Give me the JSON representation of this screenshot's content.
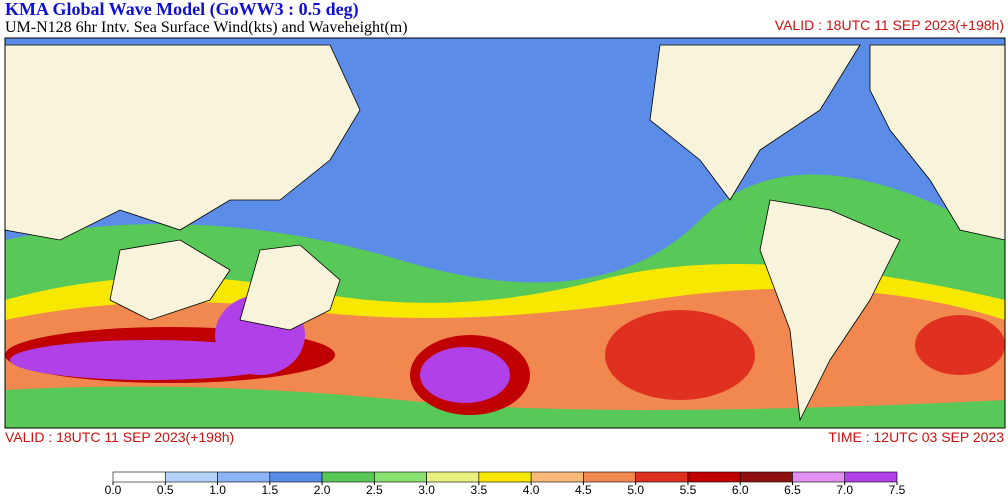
{
  "header": {
    "title": "KMA  Global Wave Model (GoWW3 : 0.5 deg)",
    "subtitle": "UM-N128  6hr Intv. Sea Surface Wind(kts) and Waveheight(m)",
    "valid_top": "VALID : 18UTC 11 SEP 2023(+198h)"
  },
  "footer": {
    "valid": "VALID : 18UTC 11 SEP 2023(+198h)",
    "time": "TIME : 12UTC 03 SEP 2023"
  },
  "legend": {
    "colors": [
      "#ffffff",
      "#b4d2f8",
      "#8cb4f4",
      "#5a8ce8",
      "#58c858",
      "#88e070",
      "#e8f080",
      "#f8e800",
      "#f8b878",
      "#f08850",
      "#e03020",
      "#c00000",
      "#901010",
      "#e090f0",
      "#b040e8"
    ],
    "ticks": [
      {
        "value": 0,
        "label": "0.0"
      },
      {
        "value": 0.5,
        "label": "0.5"
      },
      {
        "value": 1,
        "label": "1.0"
      },
      {
        "value": 1.5,
        "label": "1.5"
      },
      {
        "value": 2,
        "label": "2.0"
      },
      {
        "value": 2.5,
        "label": "2.5"
      },
      {
        "value": 3,
        "label": "3.0"
      },
      {
        "value": 3.5,
        "label": "3.5"
      },
      {
        "value": 4,
        "label": "4.0"
      },
      {
        "value": 4.5,
        "label": "4.5"
      },
      {
        "value": 5,
        "label": "5.0"
      },
      {
        "value": 5.5,
        "label": "5.5"
      },
      {
        "value": 6,
        "label": "6.0"
      },
      {
        "value": 6.5,
        "label": "6.5"
      },
      {
        "value": 7,
        "label": "7.0"
      },
      {
        "value": 7.5,
        "label": "7.5"
      }
    ]
  }
}
